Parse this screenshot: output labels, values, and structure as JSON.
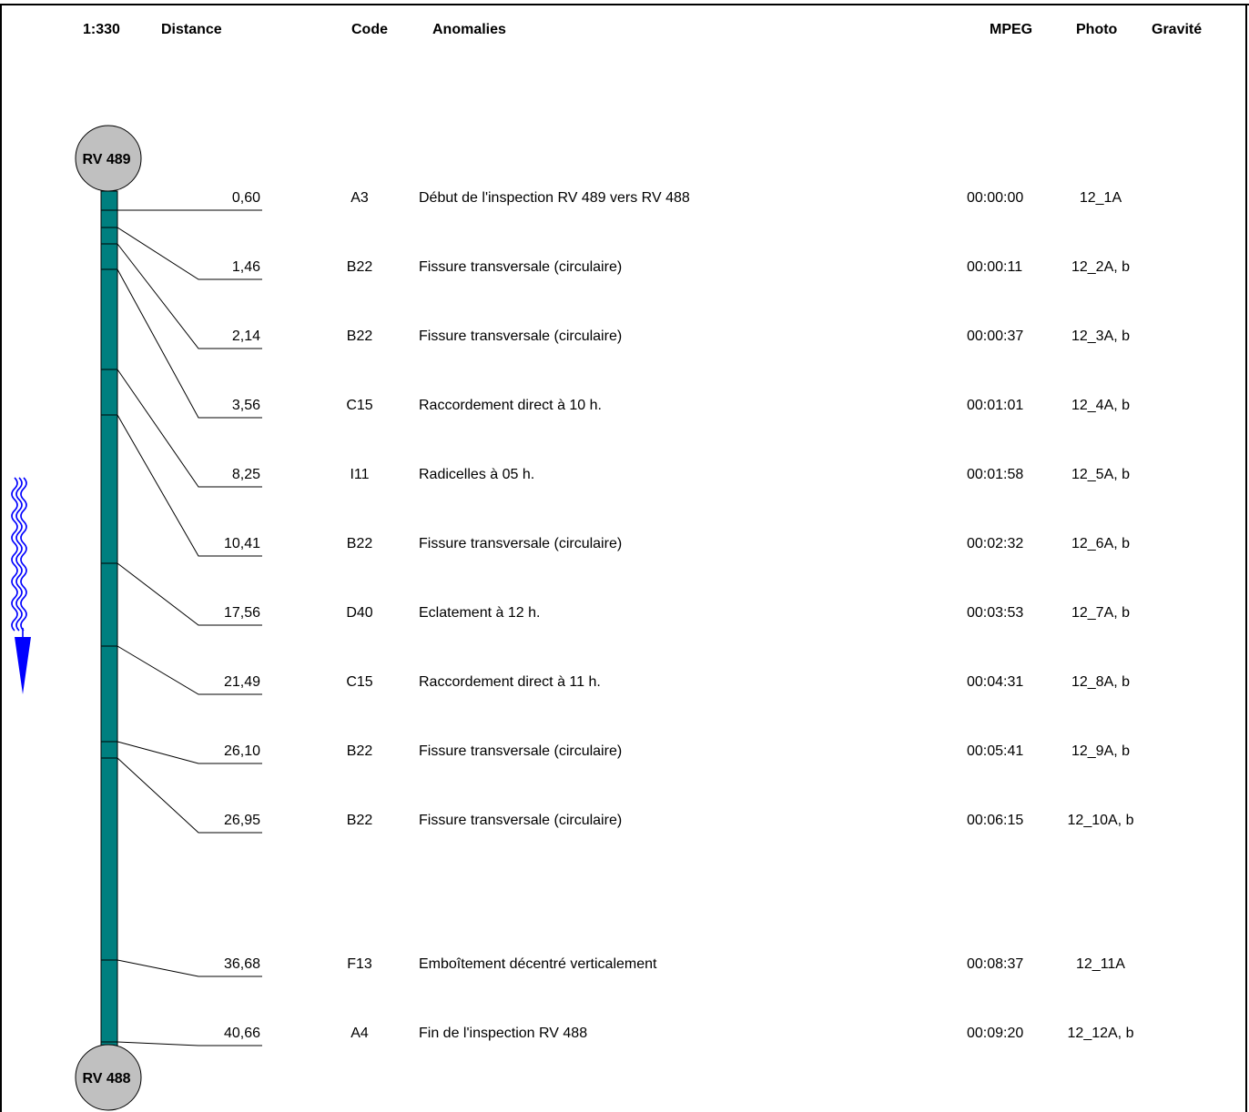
{
  "header": {
    "scale": "1:330",
    "distance": "Distance",
    "code": "Code",
    "anomalies": "Anomalies",
    "mpeg": "MPEG",
    "photo": "Photo",
    "gravite": "Gravité"
  },
  "manholes": {
    "start": "RV 489",
    "end": "RV 488"
  },
  "rows": [
    {
      "distance": "0,60",
      "code": "A3",
      "anomaly": "Début de l'inspection RV 489 vers RV 488",
      "mpeg": "00:00:00",
      "photo": "12_1A"
    },
    {
      "distance": "1,46",
      "code": "B22",
      "anomaly": "Fissure transversale  (circulaire)",
      "mpeg": "00:00:11",
      "photo": "12_2A, b"
    },
    {
      "distance": "2,14",
      "code": "B22",
      "anomaly": "Fissure transversale  (circulaire)",
      "mpeg": "00:00:37",
      "photo": "12_3A, b"
    },
    {
      "distance": "3,56",
      "code": "C15",
      "anomaly": "Raccordement direct à 10 h.",
      "mpeg": "00:01:01",
      "photo": "12_4A, b"
    },
    {
      "distance": "8,25",
      "code": "I11",
      "anomaly": "Radicelles  à 05 h.",
      "mpeg": "00:01:58",
      "photo": "12_5A, b"
    },
    {
      "distance": "10,41",
      "code": "B22",
      "anomaly": "Fissure transversale  (circulaire)",
      "mpeg": "00:02:32",
      "photo": "12_6A, b"
    },
    {
      "distance": "17,56",
      "code": "D40",
      "anomaly": "Eclatement à 12 h.",
      "mpeg": "00:03:53",
      "photo": "12_7A, b"
    },
    {
      "distance": "21,49",
      "code": "C15",
      "anomaly": "Raccordement direct à 11 h.",
      "mpeg": "00:04:31",
      "photo": "12_8A, b"
    },
    {
      "distance": "26,10",
      "code": "B22",
      "anomaly": "Fissure transversale  (circulaire)",
      "mpeg": "00:05:41",
      "photo": "12_9A, b"
    },
    {
      "distance": "26,95",
      "code": "B22",
      "anomaly": "Fissure transversale  (circulaire)",
      "mpeg": "00:06:15",
      "photo": "12_10A, b"
    },
    {
      "distance": "36,68",
      "code": "F13",
      "anomaly": "Emboîtement décentré verticalement",
      "mpeg": "00:08:37",
      "photo": "12_11A"
    },
    {
      "distance": "40,66",
      "code": "A4",
      "anomaly": "Fin de l'inspection RV 488",
      "mpeg": "00:09:20",
      "photo": "12_12A, b"
    }
  ],
  "colors": {
    "pipe": "#007F7F",
    "manhole": "#C0C0C0",
    "flow_arrow": "#0000FF"
  },
  "icons": {
    "flow": "flow-direction-arrow-icon"
  }
}
